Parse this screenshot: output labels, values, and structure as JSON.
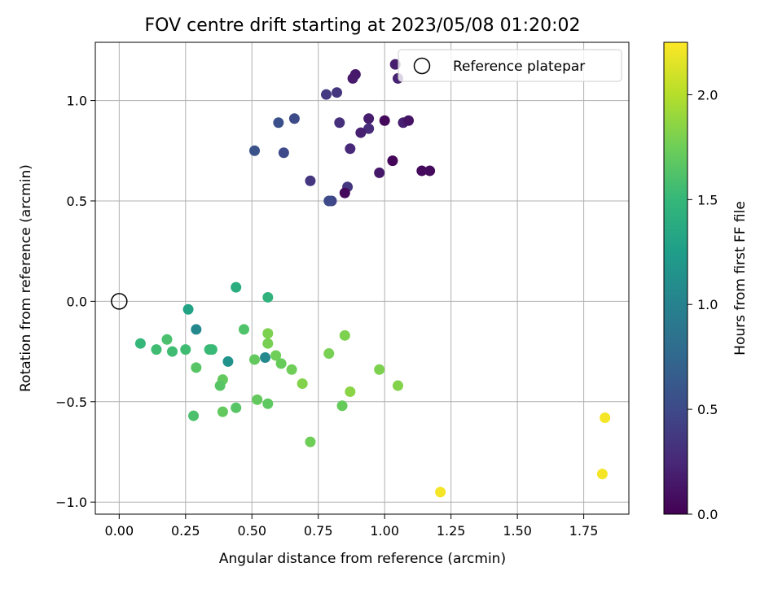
{
  "chart_data": {
    "type": "scatter",
    "title": "FOV centre drift starting at 2023/05/08 01:20:02",
    "xlabel": "Angular distance from reference (arcmin)",
    "ylabel": "Rotation from reference (arcmin)",
    "xlim": [
      -0.09,
      1.92
    ],
    "ylim": [
      -1.06,
      1.29
    ],
    "xticks": [
      0.0,
      0.25,
      0.5,
      0.75,
      1.0,
      1.25,
      1.5,
      1.75
    ],
    "xtick_labels": [
      "0.00",
      "0.25",
      "0.50",
      "0.75",
      "1.00",
      "1.25",
      "1.50",
      "1.75"
    ],
    "yticks": [
      -1.0,
      -0.5,
      0.0,
      0.5,
      1.0
    ],
    "ytick_labels": [
      "−1.0",
      "−0.5",
      "0.0",
      "0.5",
      "1.0"
    ],
    "grid": true,
    "legend": {
      "placement": "top-right",
      "entries": [
        "Reference platepar"
      ]
    },
    "reference_point": {
      "x": 0.0,
      "y": 0.0,
      "name": "Reference platepar"
    },
    "colormap": "viridis",
    "colorbar": {
      "label": "Hours from first FF file",
      "range": [
        0.0,
        2.25
      ],
      "ticks": [
        0.0,
        0.5,
        1.0,
        1.5,
        2.0
      ],
      "tick_labels": [
        "0.0",
        "0.5",
        "1.0",
        "1.5",
        "2.0"
      ]
    },
    "points": [
      {
        "x": 0.89,
        "y": 1.13,
        "c": 0.15
      },
      {
        "x": 1.04,
        "y": 1.18,
        "c": 0.18
      },
      {
        "x": 0.88,
        "y": 1.11,
        "c": 0.16
      },
      {
        "x": 1.05,
        "y": 1.11,
        "c": 0.22
      },
      {
        "x": 0.82,
        "y": 1.04,
        "c": 0.35
      },
      {
        "x": 0.78,
        "y": 1.03,
        "c": 0.38
      },
      {
        "x": 0.66,
        "y": 0.91,
        "c": 0.52
      },
      {
        "x": 0.6,
        "y": 0.89,
        "c": 0.55
      },
      {
        "x": 0.83,
        "y": 0.89,
        "c": 0.3
      },
      {
        "x": 0.94,
        "y": 0.91,
        "c": 0.18
      },
      {
        "x": 0.94,
        "y": 0.86,
        "c": 0.28
      },
      {
        "x": 0.91,
        "y": 0.84,
        "c": 0.2
      },
      {
        "x": 1.0,
        "y": 0.9,
        "c": 0.05
      },
      {
        "x": 1.07,
        "y": 0.89,
        "c": 0.2
      },
      {
        "x": 1.09,
        "y": 0.9,
        "c": 0.12
      },
      {
        "x": 0.51,
        "y": 0.75,
        "c": 0.58
      },
      {
        "x": 0.62,
        "y": 0.74,
        "c": 0.5
      },
      {
        "x": 0.87,
        "y": 0.76,
        "c": 0.25
      },
      {
        "x": 1.03,
        "y": 0.7,
        "c": 0.02
      },
      {
        "x": 0.98,
        "y": 0.64,
        "c": 0.15
      },
      {
        "x": 1.14,
        "y": 0.65,
        "c": 0.06
      },
      {
        "x": 1.17,
        "y": 0.65,
        "c": 0.07
      },
      {
        "x": 0.72,
        "y": 0.6,
        "c": 0.35
      },
      {
        "x": 0.86,
        "y": 0.57,
        "c": 0.35
      },
      {
        "x": 0.85,
        "y": 0.54,
        "c": 0.05
      },
      {
        "x": 0.8,
        "y": 0.5,
        "c": 0.45
      },
      {
        "x": 0.79,
        "y": 0.5,
        "c": 0.5
      },
      {
        "x": 0.44,
        "y": 0.07,
        "c": 1.4
      },
      {
        "x": 0.56,
        "y": 0.02,
        "c": 1.45
      },
      {
        "x": 0.26,
        "y": -0.04,
        "c": 1.3
      },
      {
        "x": 0.29,
        "y": -0.14,
        "c": 1.05
      },
      {
        "x": 0.47,
        "y": -0.14,
        "c": 1.62
      },
      {
        "x": 0.56,
        "y": -0.16,
        "c": 1.8
      },
      {
        "x": 0.85,
        "y": -0.17,
        "c": 1.8
      },
      {
        "x": 0.18,
        "y": -0.19,
        "c": 1.6
      },
      {
        "x": 0.08,
        "y": -0.21,
        "c": 1.5
      },
      {
        "x": 0.56,
        "y": -0.21,
        "c": 1.78
      },
      {
        "x": 0.14,
        "y": -0.24,
        "c": 1.55
      },
      {
        "x": 0.2,
        "y": -0.25,
        "c": 1.55
      },
      {
        "x": 0.25,
        "y": -0.24,
        "c": 1.55
      },
      {
        "x": 0.34,
        "y": -0.24,
        "c": 1.52
      },
      {
        "x": 0.35,
        "y": -0.24,
        "c": 1.52
      },
      {
        "x": 0.79,
        "y": -0.26,
        "c": 1.78
      },
      {
        "x": 0.59,
        "y": -0.27,
        "c": 1.75
      },
      {
        "x": 0.55,
        "y": -0.28,
        "c": 1.05
      },
      {
        "x": 0.51,
        "y": -0.29,
        "c": 1.7
      },
      {
        "x": 0.41,
        "y": -0.3,
        "c": 1.15
      },
      {
        "x": 0.61,
        "y": -0.31,
        "c": 1.72
      },
      {
        "x": 0.29,
        "y": -0.33,
        "c": 1.65
      },
      {
        "x": 0.65,
        "y": -0.34,
        "c": 1.75
      },
      {
        "x": 0.98,
        "y": -0.34,
        "c": 1.8
      },
      {
        "x": 0.39,
        "y": -0.39,
        "c": 1.7
      },
      {
        "x": 0.38,
        "y": -0.42,
        "c": 1.65
      },
      {
        "x": 0.69,
        "y": -0.41,
        "c": 1.82
      },
      {
        "x": 1.05,
        "y": -0.42,
        "c": 1.82
      },
      {
        "x": 0.87,
        "y": -0.45,
        "c": 1.85
      },
      {
        "x": 0.52,
        "y": -0.49,
        "c": 1.7
      },
      {
        "x": 0.56,
        "y": -0.51,
        "c": 1.68
      },
      {
        "x": 0.84,
        "y": -0.52,
        "c": 1.72
      },
      {
        "x": 0.44,
        "y": -0.53,
        "c": 1.65
      },
      {
        "x": 0.39,
        "y": -0.55,
        "c": 1.7
      },
      {
        "x": 0.28,
        "y": -0.57,
        "c": 1.6
      },
      {
        "x": 0.72,
        "y": -0.7,
        "c": 1.75
      },
      {
        "x": 1.83,
        "y": -0.58,
        "c": 2.22
      },
      {
        "x": 1.82,
        "y": -0.86,
        "c": 2.22
      },
      {
        "x": 1.21,
        "y": -0.95,
        "c": 2.22
      }
    ]
  },
  "colors": {
    "background": "#ffffff",
    "grid": "#b0b0b0",
    "viridis_stops": [
      "#440154",
      "#482878",
      "#3e4a89",
      "#31688e",
      "#26828e",
      "#1f9e89",
      "#35b779",
      "#6ece58",
      "#b5de2b",
      "#fde725"
    ]
  }
}
